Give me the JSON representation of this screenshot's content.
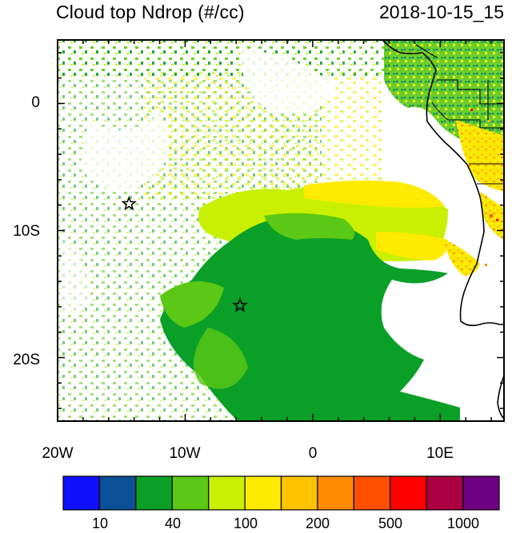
{
  "title": "Cloud top Ndrop (#/cc)",
  "timestamp": "2018-10-15_15",
  "map": {
    "lon_range": [
      -20,
      15
    ],
    "lat_range": [
      -25,
      5
    ],
    "lat_labels": [
      "0",
      "10S",
      "20S"
    ],
    "lon_labels": [
      "20W",
      "10W",
      "0",
      "10E"
    ],
    "stars": [
      {
        "lon": -14.4,
        "lat": -7.9
      },
      {
        "lon": -5.7,
        "lat": -15.9
      }
    ]
  },
  "colorbar": {
    "colors": [
      "#1010ff",
      "#0a5096",
      "#0aa028",
      "#5ac814",
      "#c8f000",
      "#ffeb00",
      "#ffc300",
      "#ff8c00",
      "#ff5000",
      "#ff0000",
      "#aa0041",
      "#6e0082"
    ],
    "labels": [
      "10",
      "40",
      "100",
      "200",
      "500",
      "1000"
    ]
  }
}
